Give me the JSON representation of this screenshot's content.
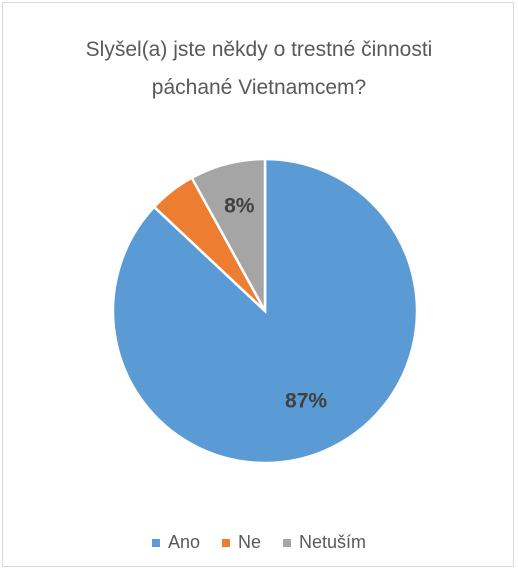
{
  "chart_data": {
    "type": "pie",
    "title": "Slyšel(a) jste někdy o trestné činnosti páchané Vietnamcem?",
    "categories": [
      "Ano",
      "Ne",
      "Netuším"
    ],
    "values": [
      87,
      5,
      8
    ],
    "value_labels": [
      "87%",
      null,
      "8%"
    ],
    "colors": [
      "#5b9bd5",
      "#ed7d31",
      "#a5a5a5"
    ],
    "legend": "bottom"
  }
}
